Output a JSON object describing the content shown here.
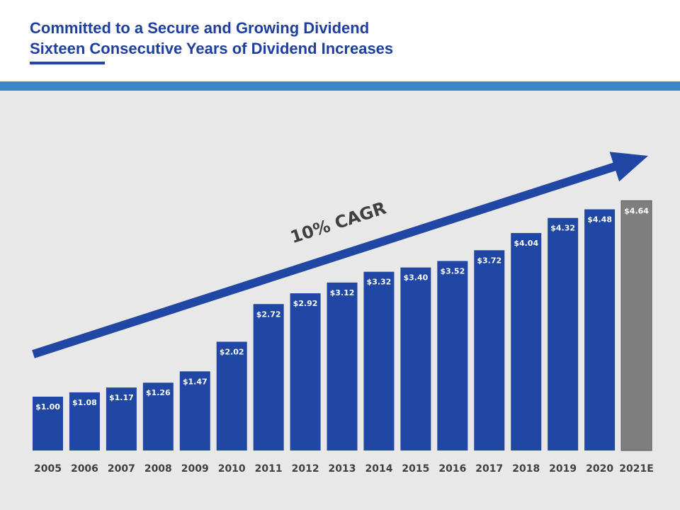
{
  "chart_data": {
    "type": "bar",
    "title": "Committed to a Secure and Growing Dividend",
    "subtitle": "Sixteen Consecutive Years of Dividend Increases",
    "annotation": "10% CAGR",
    "categories": [
      "2005",
      "2006",
      "2007",
      "2008",
      "2009",
      "2010",
      "2011",
      "2012",
      "2013",
      "2014",
      "2015",
      "2016",
      "2017",
      "2018",
      "2019",
      "2020",
      "2021E"
    ],
    "values": [
      1.0,
      1.08,
      1.17,
      1.26,
      1.47,
      2.02,
      2.72,
      2.92,
      3.12,
      3.32,
      3.4,
      3.52,
      3.72,
      4.04,
      4.32,
      4.48,
      4.64
    ],
    "value_labels": [
      "$1.00",
      "$1.08",
      "$1.17",
      "$1.26",
      "$1.47",
      "$2.02",
      "$2.72",
      "$2.92",
      "$3.12",
      "$3.32",
      "$3.40",
      "$3.52",
      "$3.72",
      "$4.04",
      "$4.32",
      "$4.48",
      "$4.64"
    ],
    "colors": [
      "#1f47a3",
      "#1f47a3",
      "#1f47a3",
      "#1f47a3",
      "#1f47a3",
      "#1f47a3",
      "#1f47a3",
      "#1f47a3",
      "#1f47a3",
      "#1f47a3",
      "#1f47a3",
      "#1f47a3",
      "#1f47a3",
      "#1f47a3",
      "#1f47a3",
      "#1f47a3",
      "#7f7f7f"
    ]
  }
}
